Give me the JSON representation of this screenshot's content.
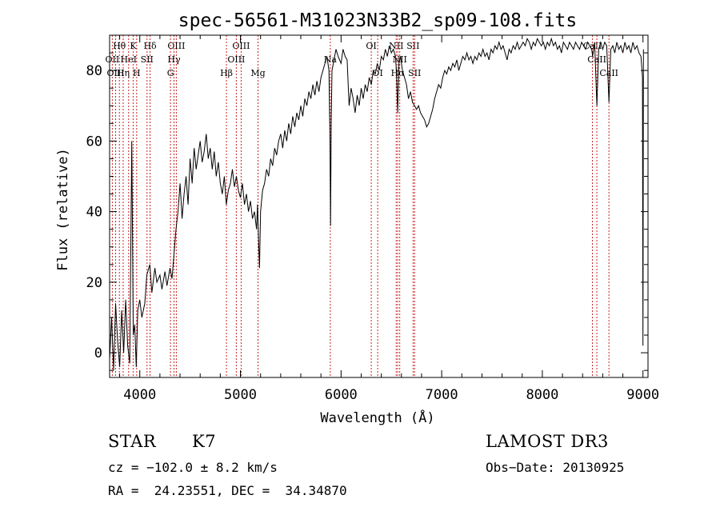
{
  "chart_data": {
    "type": "line",
    "title": "spec-56561-M31023N33B2_sp09-108.fits",
    "xlabel": "Wavelength (Å)",
    "ylabel": "Flux (relative)",
    "xlim": [
      3700,
      9050
    ],
    "ylim": [
      -7,
      90
    ],
    "xticks": [
      4000,
      5000,
      6000,
      7000,
      8000,
      9000
    ],
    "yticks": [
      0,
      20,
      40,
      60,
      80
    ],
    "spectrum": [
      [
        3700,
        -2
      ],
      [
        3720,
        10
      ],
      [
        3740,
        -5
      ],
      [
        3760,
        14
      ],
      [
        3780,
        3
      ],
      [
        3800,
        -4
      ],
      [
        3820,
        12
      ],
      [
        3840,
        0
      ],
      [
        3860,
        15
      ],
      [
        3880,
        2
      ],
      [
        3900,
        -3
      ],
      [
        3920,
        60
      ],
      [
        3935,
        5
      ],
      [
        3950,
        8
      ],
      [
        3965,
        -4
      ],
      [
        3980,
        12
      ],
      [
        4000,
        15
      ],
      [
        4020,
        10
      ],
      [
        4050,
        14
      ],
      [
        4070,
        22
      ],
      [
        4100,
        25
      ],
      [
        4120,
        17
      ],
      [
        4150,
        24
      ],
      [
        4170,
        20
      ],
      [
        4200,
        22
      ],
      [
        4220,
        18
      ],
      [
        4250,
        23
      ],
      [
        4270,
        19
      ],
      [
        4300,
        24
      ],
      [
        4320,
        21
      ],
      [
        4340,
        28
      ],
      [
        4360,
        35
      ],
      [
        4380,
        40
      ],
      [
        4400,
        48
      ],
      [
        4420,
        38
      ],
      [
        4440,
        45
      ],
      [
        4460,
        50
      ],
      [
        4480,
        42
      ],
      [
        4500,
        55
      ],
      [
        4520,
        48
      ],
      [
        4540,
        58
      ],
      [
        4560,
        52
      ],
      [
        4580,
        56
      ],
      [
        4600,
        60
      ],
      [
        4620,
        54
      ],
      [
        4640,
        57
      ],
      [
        4660,
        62
      ],
      [
        4680,
        55
      ],
      [
        4700,
        58
      ],
      [
        4720,
        52
      ],
      [
        4740,
        57
      ],
      [
        4760,
        50
      ],
      [
        4780,
        54
      ],
      [
        4800,
        48
      ],
      [
        4820,
        45
      ],
      [
        4840,
        50
      ],
      [
        4860,
        42
      ],
      [
        4880,
        46
      ],
      [
        4900,
        48
      ],
      [
        4920,
        52
      ],
      [
        4940,
        47
      ],
      [
        4960,
        50
      ],
      [
        4980,
        46
      ],
      [
        5000,
        44
      ],
      [
        5020,
        48
      ],
      [
        5040,
        42
      ],
      [
        5060,
        45
      ],
      [
        5080,
        40
      ],
      [
        5100,
        43
      ],
      [
        5120,
        38
      ],
      [
        5140,
        40
      ],
      [
        5160,
        35
      ],
      [
        5170,
        42
      ],
      [
        5180,
        32
      ],
      [
        5190,
        24
      ],
      [
        5200,
        40
      ],
      [
        5220,
        46
      ],
      [
        5240,
        48
      ],
      [
        5260,
        52
      ],
      [
        5280,
        50
      ],
      [
        5300,
        55
      ],
      [
        5320,
        53
      ],
      [
        5340,
        58
      ],
      [
        5360,
        56
      ],
      [
        5380,
        60
      ],
      [
        5400,
        62
      ],
      [
        5420,
        58
      ],
      [
        5440,
        63
      ],
      [
        5460,
        60
      ],
      [
        5480,
        65
      ],
      [
        5500,
        62
      ],
      [
        5520,
        67
      ],
      [
        5540,
        64
      ],
      [
        5560,
        68
      ],
      [
        5580,
        66
      ],
      [
        5600,
        70
      ],
      [
        5620,
        67
      ],
      [
        5640,
        72
      ],
      [
        5660,
        70
      ],
      [
        5680,
        74
      ],
      [
        5700,
        72
      ],
      [
        5720,
        76
      ],
      [
        5740,
        73
      ],
      [
        5760,
        77
      ],
      [
        5780,
        74
      ],
      [
        5800,
        78
      ],
      [
        5820,
        80
      ],
      [
        5840,
        82
      ],
      [
        5860,
        84
      ],
      [
        5880,
        80
      ],
      [
        5890,
        60
      ],
      [
        5896,
        36
      ],
      [
        5902,
        65
      ],
      [
        5910,
        80
      ],
      [
        5930,
        83
      ],
      [
        5950,
        86
      ],
      [
        5970,
        84
      ],
      [
        6000,
        82
      ],
      [
        6020,
        86
      ],
      [
        6040,
        84
      ],
      [
        6060,
        83
      ],
      [
        6080,
        70
      ],
      [
        6100,
        75
      ],
      [
        6120,
        72
      ],
      [
        6140,
        68
      ],
      [
        6160,
        73
      ],
      [
        6180,
        70
      ],
      [
        6200,
        75
      ],
      [
        6220,
        72
      ],
      [
        6240,
        76
      ],
      [
        6260,
        74
      ],
      [
        6280,
        78
      ],
      [
        6300,
        76
      ],
      [
        6320,
        80
      ],
      [
        6340,
        79
      ],
      [
        6360,
        82
      ],
      [
        6380,
        80
      ],
      [
        6400,
        84
      ],
      [
        6420,
        83
      ],
      [
        6440,
        86
      ],
      [
        6460,
        84
      ],
      [
        6480,
        87
      ],
      [
        6500,
        85
      ],
      [
        6520,
        86
      ],
      [
        6540,
        84
      ],
      [
        6550,
        80
      ],
      [
        6563,
        68
      ],
      [
        6575,
        82
      ],
      [
        6590,
        84
      ],
      [
        6610,
        80
      ],
      [
        6630,
        78
      ],
      [
        6650,
        76
      ],
      [
        6670,
        72
      ],
      [
        6690,
        74
      ],
      [
        6710,
        71
      ],
      [
        6730,
        70
      ],
      [
        6750,
        69
      ],
      [
        6770,
        70
      ],
      [
        6790,
        68
      ],
      [
        6810,
        67
      ],
      [
        6830,
        66
      ],
      [
        6850,
        64
      ],
      [
        6870,
        65
      ],
      [
        6890,
        67
      ],
      [
        6910,
        69
      ],
      [
        6930,
        72
      ],
      [
        6950,
        74
      ],
      [
        6970,
        76
      ],
      [
        6990,
        75
      ],
      [
        7010,
        78
      ],
      [
        7030,
        80
      ],
      [
        7050,
        79
      ],
      [
        7070,
        81
      ],
      [
        7090,
        80
      ],
      [
        7110,
        82
      ],
      [
        7130,
        81
      ],
      [
        7150,
        83
      ],
      [
        7170,
        80
      ],
      [
        7190,
        82
      ],
      [
        7210,
        84
      ],
      [
        7230,
        83
      ],
      [
        7250,
        85
      ],
      [
        7270,
        83
      ],
      [
        7290,
        84
      ],
      [
        7310,
        82
      ],
      [
        7330,
        84
      ],
      [
        7350,
        83
      ],
      [
        7370,
        85
      ],
      [
        7390,
        84
      ],
      [
        7410,
        86
      ],
      [
        7430,
        84
      ],
      [
        7450,
        85
      ],
      [
        7470,
        83
      ],
      [
        7490,
        86
      ],
      [
        7510,
        85
      ],
      [
        7530,
        87
      ],
      [
        7550,
        86
      ],
      [
        7570,
        88
      ],
      [
        7590,
        86
      ],
      [
        7610,
        87
      ],
      [
        7630,
        85
      ],
      [
        7650,
        83
      ],
      [
        7670,
        86
      ],
      [
        7690,
        85
      ],
      [
        7710,
        87
      ],
      [
        7730,
        86
      ],
      [
        7750,
        88
      ],
      [
        7770,
        86
      ],
      [
        7790,
        87
      ],
      [
        7810,
        88
      ],
      [
        7830,
        87
      ],
      [
        7850,
        89
      ],
      [
        7870,
        88
      ],
      [
        7890,
        86
      ],
      [
        7910,
        88
      ],
      [
        7930,
        87
      ],
      [
        7950,
        89
      ],
      [
        7970,
        88
      ],
      [
        7990,
        87
      ],
      [
        8010,
        88
      ],
      [
        8030,
        86
      ],
      [
        8050,
        88
      ],
      [
        8070,
        87
      ],
      [
        8090,
        89
      ],
      [
        8110,
        87
      ],
      [
        8130,
        88
      ],
      [
        8150,
        86
      ],
      [
        8170,
        87
      ],
      [
        8190,
        85
      ],
      [
        8210,
        88
      ],
      [
        8230,
        87
      ],
      [
        8250,
        86
      ],
      [
        8270,
        88
      ],
      [
        8290,
        87
      ],
      [
        8310,
        86
      ],
      [
        8330,
        88
      ],
      [
        8350,
        87
      ],
      [
        8370,
        86
      ],
      [
        8390,
        88
      ],
      [
        8410,
        87
      ],
      [
        8430,
        86
      ],
      [
        8450,
        88
      ],
      [
        8470,
        87
      ],
      [
        8490,
        86
      ],
      [
        8500,
        84
      ],
      [
        8520,
        88
      ],
      [
        8542,
        70
      ],
      [
        8560,
        86
      ],
      [
        8580,
        88
      ],
      [
        8600,
        86
      ],
      [
        8620,
        88
      ],
      [
        8640,
        87
      ],
      [
        8662,
        71
      ],
      [
        8680,
        86
      ],
      [
        8700,
        87
      ],
      [
        8720,
        85
      ],
      [
        8740,
        88
      ],
      [
        8760,
        86
      ],
      [
        8780,
        87
      ],
      [
        8800,
        85
      ],
      [
        8820,
        88
      ],
      [
        8840,
        86
      ],
      [
        8860,
        87
      ],
      [
        8880,
        85
      ],
      [
        8900,
        88
      ],
      [
        8920,
        86
      ],
      [
        8940,
        87
      ],
      [
        8960,
        85
      ],
      [
        8980,
        84
      ],
      [
        8995,
        78
      ],
      [
        8998,
        24
      ],
      [
        9000,
        2
      ],
      [
        9005,
        86
      ]
    ],
    "lines": [
      {
        "label": "Hθ",
        "wl": 3797,
        "row": 0
      },
      {
        "label": "K",
        "wl": 3934,
        "row": 0
      },
      {
        "label": "Hδ",
        "wl": 4102,
        "row": 0
      },
      {
        "label": "OIII",
        "wl": 4363,
        "row": 0
      },
      {
        "label": "OIII",
        "wl": 5007,
        "row": 0
      },
      {
        "label": "OI",
        "wl": 6300,
        "row": 0
      },
      {
        "label": "NII",
        "wl": 6548,
        "row": 0
      },
      {
        "label": "SII",
        "wl": 6716,
        "row": 0
      },
      {
        "label": "CaII",
        "wl": 8498,
        "row": 0
      },
      {
        "label": "OII",
        "wl": 3727,
        "row": 1
      },
      {
        "label": "HeI",
        "wl": 3889,
        "row": 1
      },
      {
        "label": "SII",
        "wl": 4072,
        "row": 1
      },
      {
        "label": "Hγ",
        "wl": 4340,
        "row": 1
      },
      {
        "label": "OIII",
        "wl": 4959,
        "row": 1
      },
      {
        "label": "NII",
        "wl": 6583,
        "row": 1
      },
      {
        "label": "CaII",
        "wl": 8542,
        "row": 1
      },
      {
        "label": "OIII",
        "wl": 3760,
        "row": 2
      },
      {
        "label": "Hη",
        "wl": 3835,
        "row": 2
      },
      {
        "label": "H",
        "wl": 3969,
        "row": 2
      },
      {
        "label": "G",
        "wl": 4305,
        "row": 2
      },
      {
        "label": "Hβ",
        "wl": 4861,
        "row": 2
      },
      {
        "label": "Mg",
        "wl": 5175,
        "row": 2
      },
      {
        "label": "Na",
        "wl": 5893,
        "row": 1
      },
      {
        "label": "OI",
        "wl": 6364,
        "row": 2
      },
      {
        "label": "Hα",
        "wl": 6563,
        "row": 2
      },
      {
        "label": "SII",
        "wl": 6731,
        "row": 2
      },
      {
        "label": "CaII",
        "wl": 8662,
        "row": 2
      }
    ]
  },
  "info": {
    "object_class": "STAR",
    "subclass": "K7",
    "survey": "LAMOST DR3",
    "cz": "cz = −102.0 ± 8.2 km/s",
    "obs_date": "Obs−Date: 20130925",
    "coords": "RA =  24.23551, DEC =  34.34870"
  },
  "colors": {
    "line_marker": "#cc2222",
    "spectrum": "#000000"
  }
}
